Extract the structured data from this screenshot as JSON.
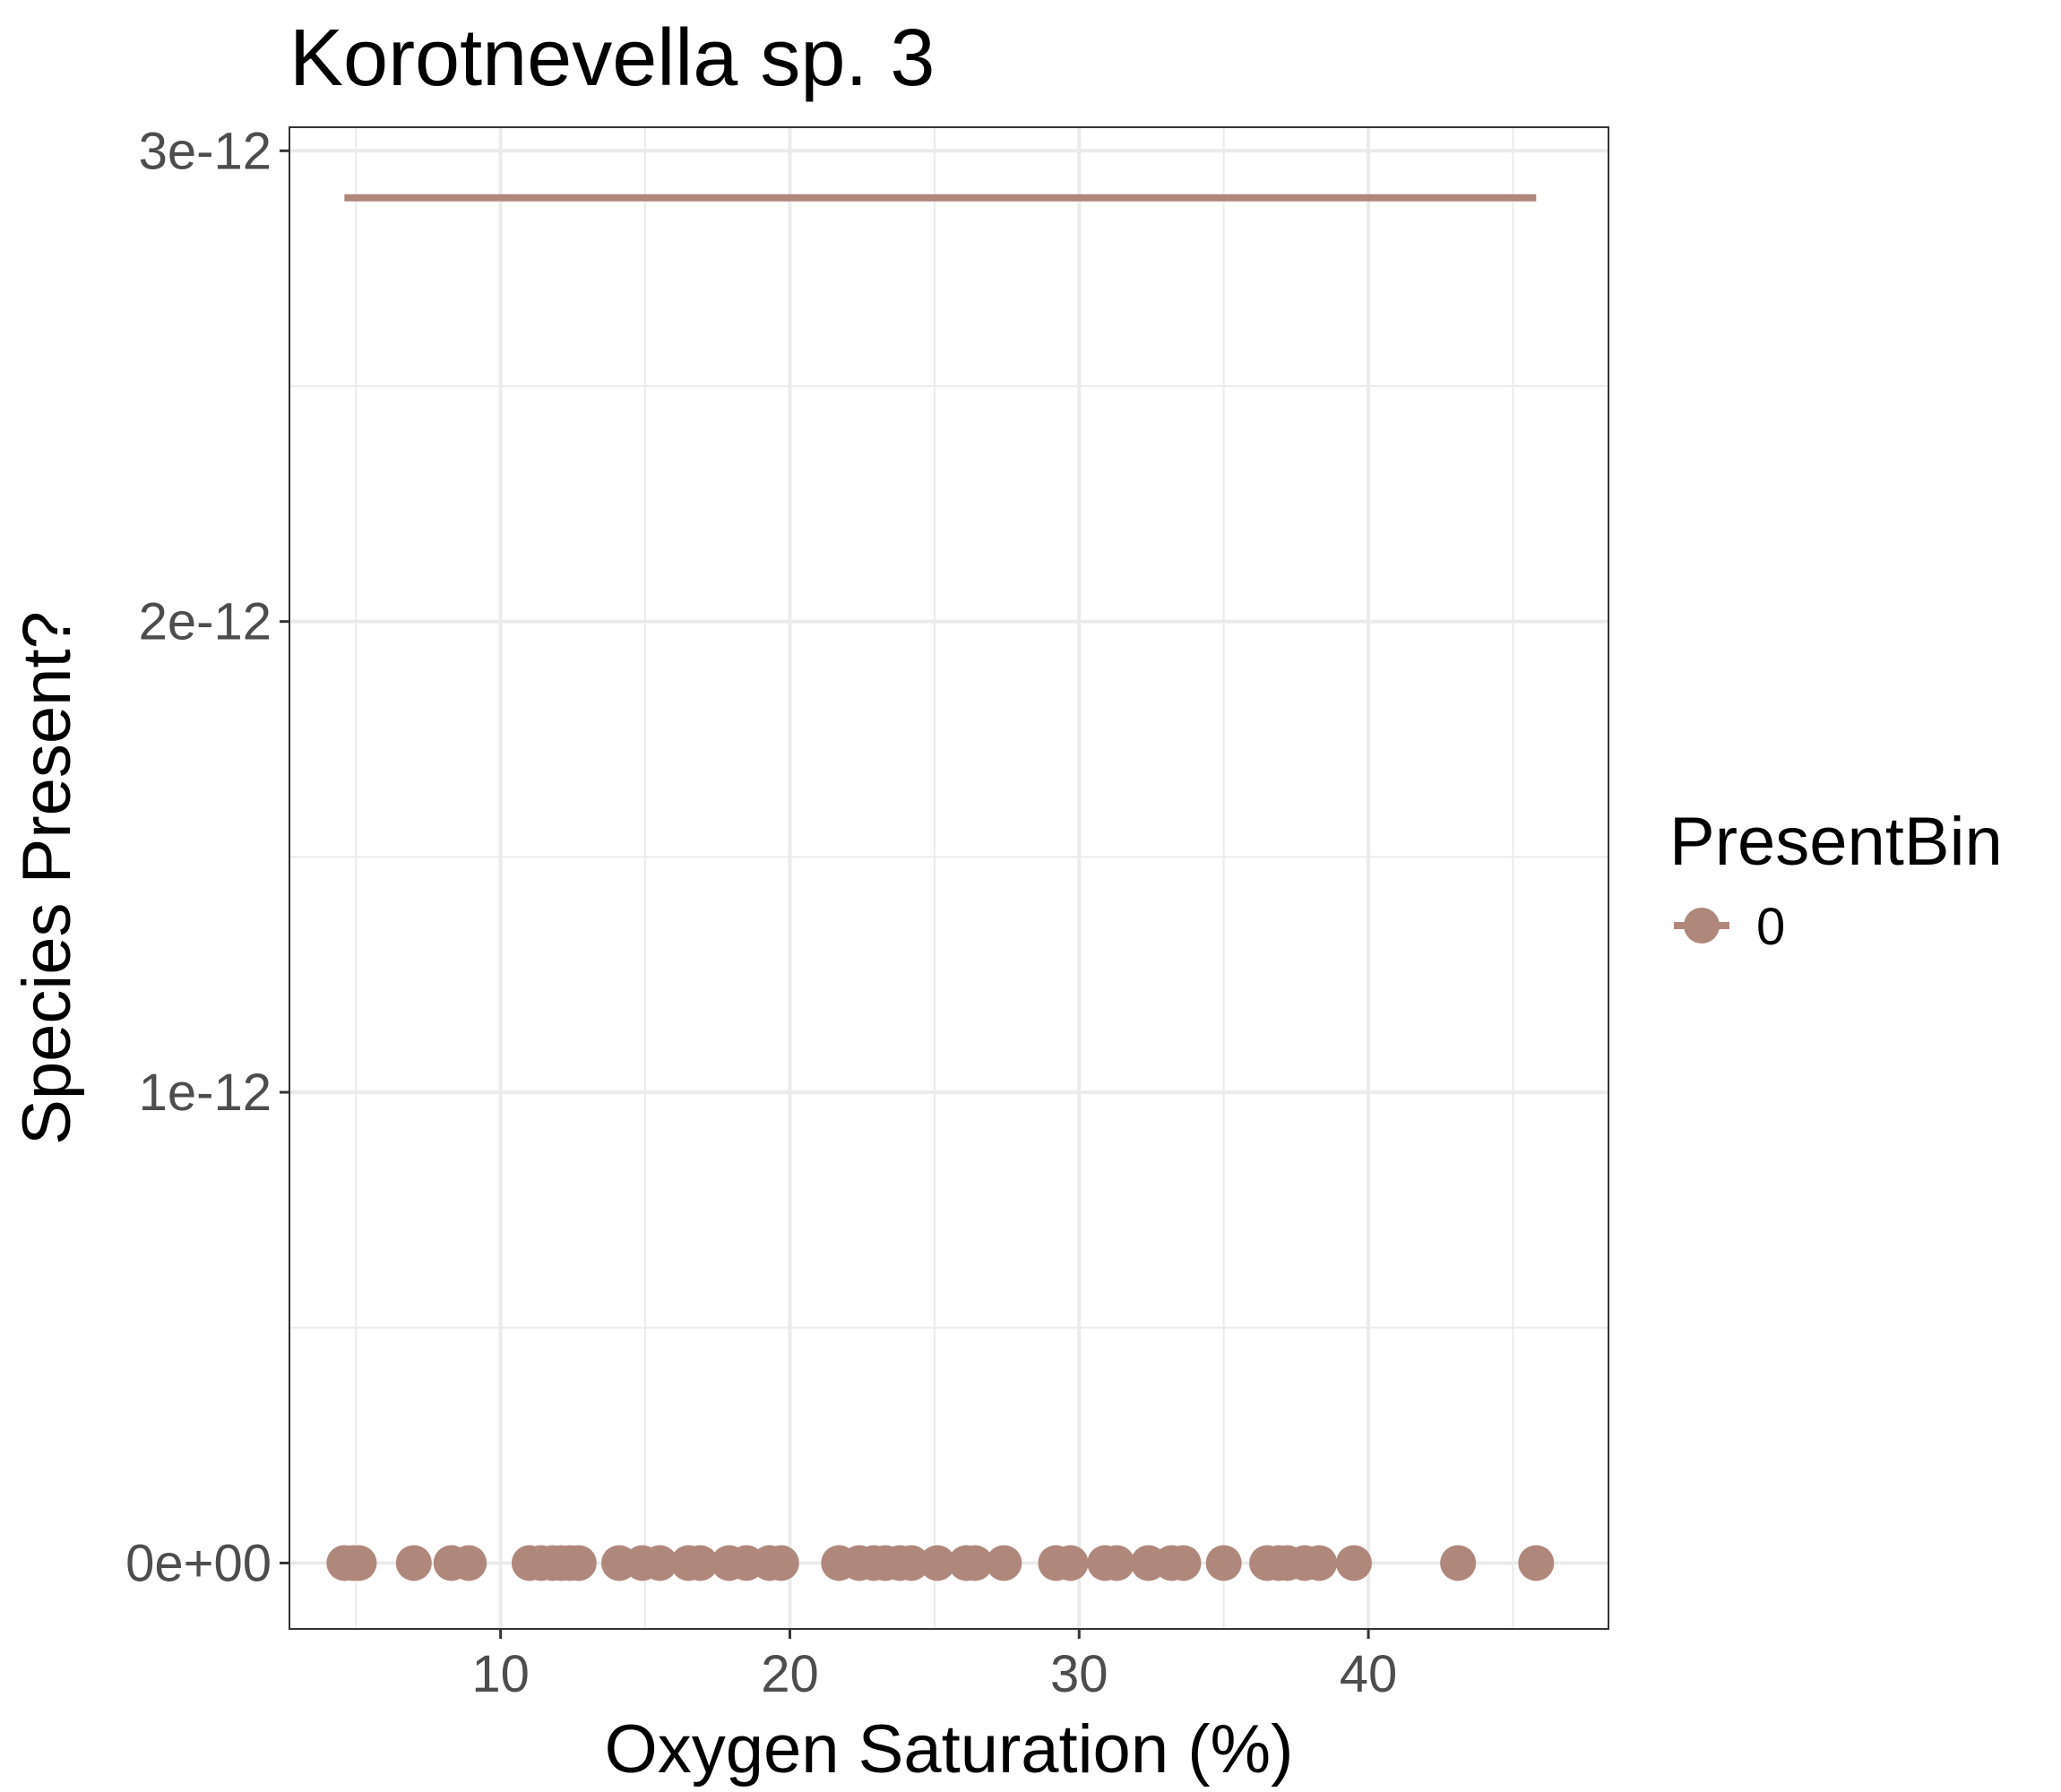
{
  "chart_data": {
    "type": "scatter",
    "title": "Korotnevella sp. 3",
    "xlabel": "Oxygen Saturation (%)",
    "ylabel": "Species Present?",
    "xlim": [
      2.7,
      48.3
    ],
    "ylim": [
      -1.4e-13,
      3.05e-12
    ],
    "x_ticks": [
      10,
      20,
      30,
      40
    ],
    "x_tick_labels": [
      "10",
      "20",
      "30",
      "40"
    ],
    "y_ticks": [
      0,
      1e-12,
      2e-12,
      3e-12
    ],
    "y_tick_labels": [
      "0e+00",
      "1e-12",
      "2e-12",
      "3e-12"
    ],
    "grid": true,
    "legend": {
      "title": "PresentBin",
      "placement": "right",
      "entries": [
        "0"
      ]
    },
    "colors": {
      "series": "#b0877b",
      "grid": "#ebebeb",
      "panel_border": "#333333"
    },
    "series": [
      {
        "name": "0",
        "points_x": [
          4.6,
          4.9,
          5.1,
          7.0,
          8.3,
          8.9,
          11.0,
          11.4,
          11.8,
          12.1,
          12.4,
          12.7,
          14.1,
          14.9,
          15.5,
          16.5,
          16.9,
          17.9,
          18.5,
          19.3,
          19.7,
          21.7,
          22.4,
          22.9,
          23.3,
          23.8,
          24.2,
          25.1,
          26.1,
          26.4,
          27.4,
          29.2,
          29.7,
          30.9,
          31.3,
          32.4,
          33.2,
          33.6,
          35.0,
          36.5,
          36.9,
          37.2,
          37.8,
          38.3,
          39.5,
          43.1,
          45.8
        ],
        "points_y": [
          0,
          0,
          0,
          0,
          0,
          0,
          0,
          0,
          0,
          0,
          0,
          0,
          0,
          0,
          0,
          0,
          0,
          0,
          0,
          0,
          0,
          0,
          0,
          0,
          0,
          0,
          0,
          0,
          0,
          0,
          0,
          0,
          0,
          0,
          0,
          0,
          0,
          0,
          0,
          0,
          0,
          0,
          0,
          0,
          0,
          0,
          0
        ],
        "fit_line": {
          "x": [
            4.6,
            45.8
          ],
          "y": [
            2.9e-12,
            2.9e-12
          ]
        }
      }
    ]
  }
}
